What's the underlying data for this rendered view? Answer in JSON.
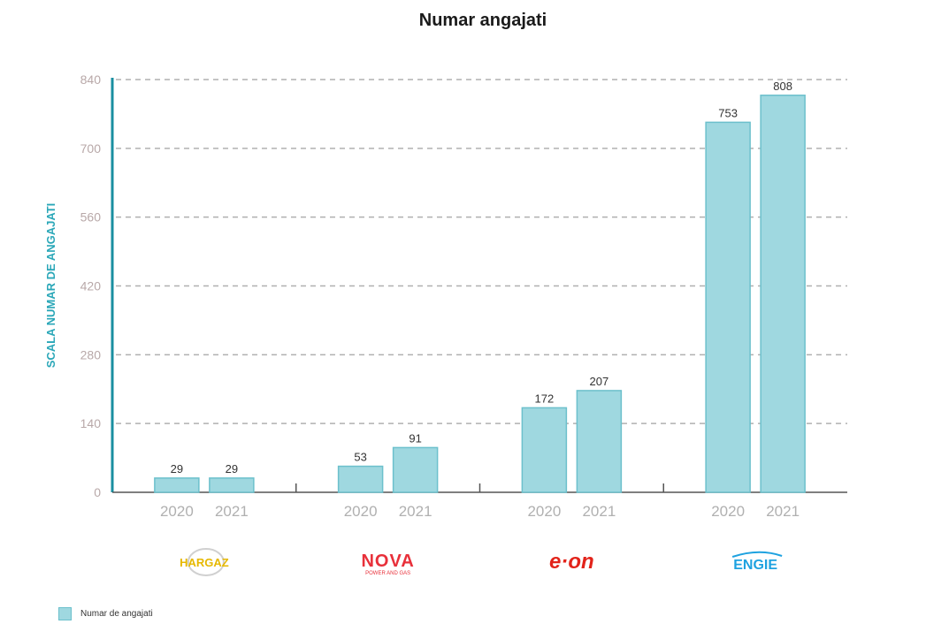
{
  "chart_data": {
    "type": "bar",
    "title": "Numar angajati",
    "ylabel": "SCALA NUMAR DE ANGAJATI",
    "ylim": [
      0,
      840
    ],
    "yticks": [
      0,
      140,
      280,
      420,
      560,
      700,
      840
    ],
    "grid": true,
    "groups": [
      {
        "company": "HARGAZ",
        "logo_color": "#e6b800",
        "bars": [
          {
            "year": "2020",
            "value": 29
          },
          {
            "year": "2021",
            "value": 29
          }
        ]
      },
      {
        "company": "NOVA",
        "subtitle": "POWER AND GAS",
        "logo_color": "#e8303a",
        "bars": [
          {
            "year": "2020",
            "value": 53
          },
          {
            "year": "2021",
            "value": 91
          }
        ]
      },
      {
        "company": "e·on",
        "logo_color": "#e2231a",
        "bars": [
          {
            "year": "2020",
            "value": 172
          },
          {
            "year": "2021",
            "value": 207
          }
        ]
      },
      {
        "company": "ENGIE",
        "logo_color": "#1ea2e0",
        "bars": [
          {
            "year": "2020",
            "value": 753
          },
          {
            "year": "2021",
            "value": 808
          }
        ]
      }
    ],
    "series": [
      {
        "name": "Numar de angajati",
        "color": "#9fd8e0"
      }
    ],
    "legend_position": "bottom-left"
  }
}
